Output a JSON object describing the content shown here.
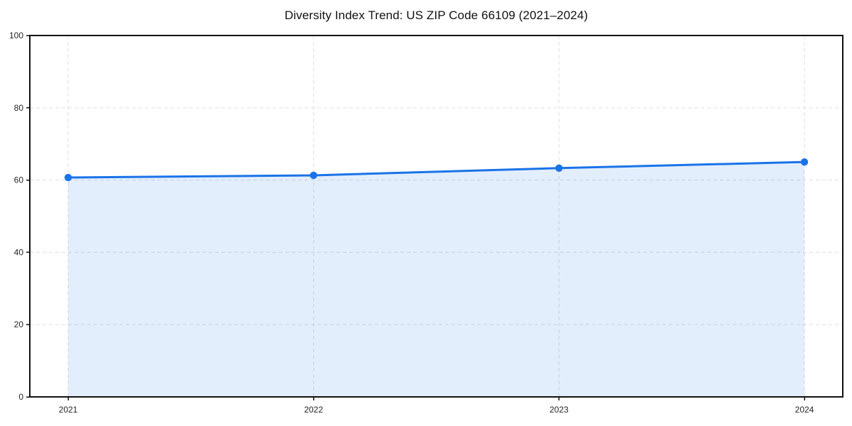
{
  "chart_data": {
    "type": "line",
    "title": "Diversity Index Trend: US ZIP Code 66109 (2021–2024)",
    "x": [
      "2021",
      "2022",
      "2023",
      "2024"
    ],
    "values": [
      60.7,
      61.3,
      63.3,
      65.0
    ],
    "xlabel": "",
    "ylabel": "",
    "ylim": [
      0,
      100
    ],
    "yticks": [
      0,
      20,
      40,
      60,
      80,
      100
    ],
    "grid": "dashed",
    "legend": "none",
    "area_fill": true,
    "marker": "circle",
    "colors": {
      "line": "#1a73e8",
      "marker": "#1a73e8",
      "area": "rgba(26,115,232,0.12)",
      "grid": "#e1e1e1",
      "spine": "#111111",
      "tick": "#111111",
      "text": "#262626",
      "background": "#ffffff"
    }
  }
}
